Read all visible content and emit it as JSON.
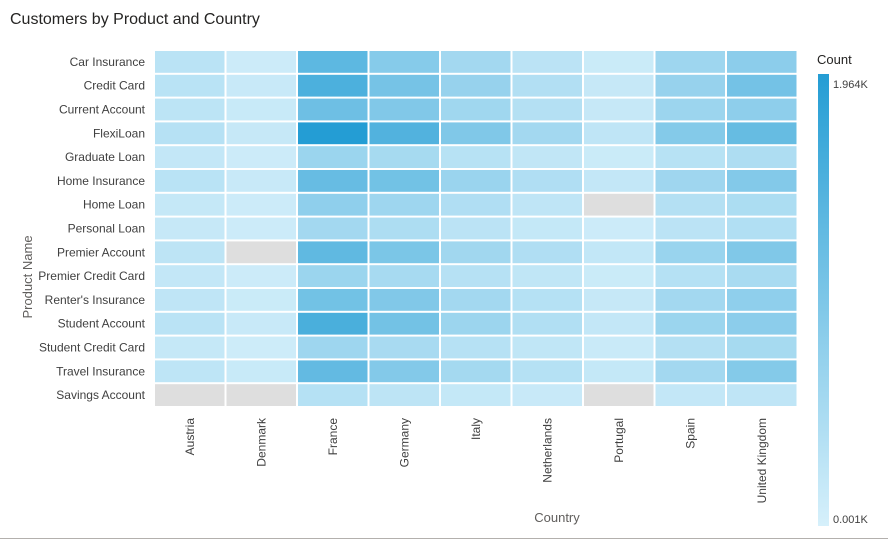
{
  "title": "Customers by Product and Country",
  "chart_data": {
    "type": "heatmap",
    "title": "Customers by Product and Country",
    "xlabel": "Country",
    "ylabel": "Product Name",
    "legend": {
      "title": "Count",
      "max_label": "1.964K",
      "min_label": "0.001K",
      "min": 1,
      "max": 1964,
      "placement": "right"
    },
    "colors": {
      "low": "#d6f0fb",
      "high": "#249dd4",
      "missing": "#dedede",
      "gap": "#ffffff"
    },
    "columns": [
      "Austria",
      "Denmark",
      "France",
      "Germany",
      "Italy",
      "Netherlands",
      "Portugal",
      "Spain",
      "United Kingdom"
    ],
    "rows": [
      "Car Insurance",
      "Credit Card",
      "Current Account",
      "FlexiLoan",
      "Graduate Loan",
      "Home Insurance",
      "Home Loan",
      "Personal Loan",
      "Premier Account",
      "Premier Credit Card",
      "Renter's Insurance",
      "Student Account",
      "Student Credit Card",
      "Travel Insurance",
      "Savings Account"
    ],
    "values": [
      [
        310,
        110,
        1330,
        880,
        560,
        300,
        130,
        620,
        820
      ],
      [
        320,
        160,
        1520,
        1060,
        700,
        400,
        180,
        700,
        1080
      ],
      [
        290,
        150,
        1150,
        940,
        600,
        380,
        180,
        640,
        800
      ],
      [
        350,
        180,
        1964,
        1460,
        950,
        560,
        260,
        900,
        1240
      ],
      [
        210,
        110,
        650,
        530,
        340,
        230,
        130,
        340,
        440
      ],
      [
        320,
        160,
        1230,
        1100,
        660,
        420,
        210,
        610,
        920
      ],
      [
        190,
        110,
        780,
        620,
        420,
        260,
        null,
        380,
        460
      ],
      [
        180,
        110,
        560,
        450,
        300,
        200,
        110,
        300,
        410
      ],
      [
        280,
        null,
        1300,
        1000,
        590,
        420,
        220,
        670,
        950
      ],
      [
        210,
        110,
        650,
        520,
        350,
        240,
        130,
        360,
        500
      ],
      [
        260,
        130,
        1100,
        940,
        560,
        360,
        180,
        560,
        780
      ],
      [
        310,
        160,
        1540,
        1090,
        640,
        410,
        210,
        650,
        820
      ],
      [
        190,
        100,
        620,
        510,
        350,
        240,
        140,
        380,
        530
      ],
      [
        270,
        150,
        1270,
        920,
        550,
        360,
        200,
        560,
        900
      ],
      [
        null,
        null,
        360,
        280,
        200,
        160,
        null,
        210,
        260
      ]
    ]
  }
}
